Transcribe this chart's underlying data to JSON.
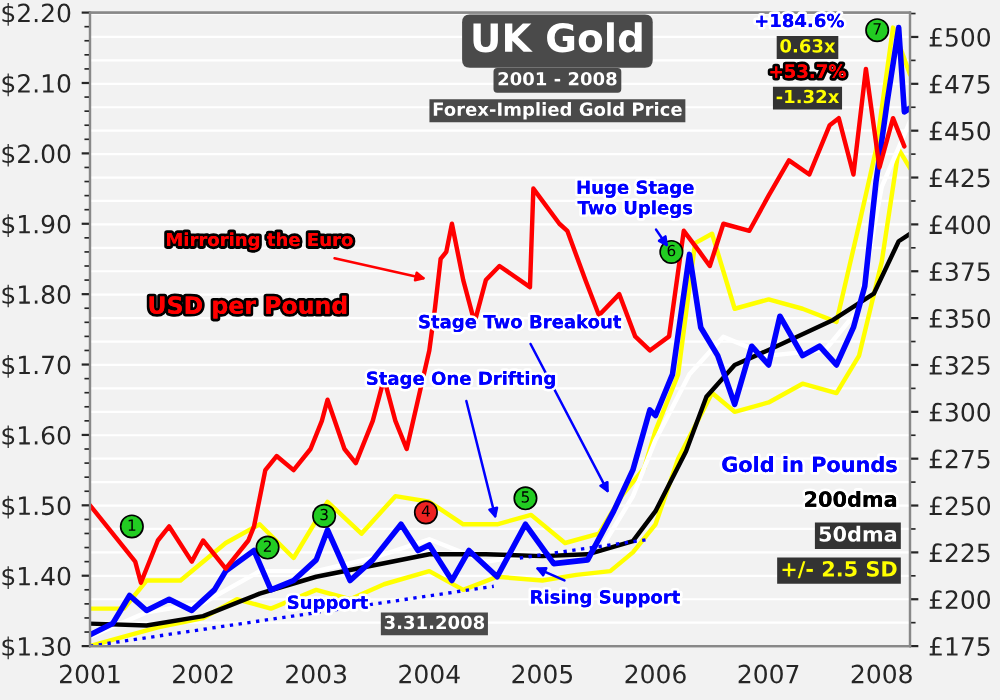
{
  "chart_data": {
    "type": "line",
    "title": "UK Gold",
    "subtitle": "2001 - 2008",
    "ylabel": "USD per Pound",
    "xlim": [
      2001,
      2008.25
    ],
    "xticks": [
      2001,
      2002,
      2003,
      2004,
      2005,
      2006,
      2007,
      2008
    ],
    "ylim": [
      1.3,
      2.2
    ],
    "yticks": [
      {
        "value": 1.3,
        "label": "$1.30"
      },
      {
        "value": 1.4,
        "label": "$1.40"
      },
      {
        "value": 1.5,
        "label": "$1.50"
      },
      {
        "value": 1.6,
        "label": "$1.60"
      },
      {
        "value": 1.7,
        "label": "$1.70"
      },
      {
        "value": 1.8,
        "label": "$1.80"
      },
      {
        "value": 1.9,
        "label": "$1.90"
      },
      {
        "value": 2.0,
        "label": "$2.00"
      },
      {
        "value": 2.1,
        "label": "$2.10"
      },
      {
        "value": 2.2,
        "label": "$2.20"
      }
    ],
    "y2lim": [
      175,
      513
    ],
    "y2ticks": [
      {
        "value": 175,
        "label": "£175"
      },
      {
        "value": 200,
        "label": "£200"
      },
      {
        "value": 225,
        "label": "£225"
      },
      {
        "value": 250,
        "label": "£250"
      },
      {
        "value": 275,
        "label": "£275"
      },
      {
        "value": 300,
        "label": "£300"
      },
      {
        "value": 325,
        "label": "£325"
      },
      {
        "value": 350,
        "label": "£350"
      },
      {
        "value": 375,
        "label": "£375"
      },
      {
        "value": 400,
        "label": "£400"
      },
      {
        "value": 425,
        "label": "£425"
      },
      {
        "value": 450,
        "label": "£450"
      },
      {
        "value": 475,
        "label": "£475"
      },
      {
        "value": 500,
        "label": "£500"
      }
    ],
    "grid": true,
    "legend": "bottom right",
    "marker": "none",
    "series": [
      {
        "name": "+/- 2.5 SD",
        "color": "#ffff00",
        "axis": "y2",
        "x": [
          2001.0,
          2001.3,
          2001.5,
          2001.8,
          2002.2,
          2002.5,
          2002.8,
          2003.1,
          2003.4,
          2003.7,
          2004.0,
          2004.3,
          2004.6,
          2004.9,
          2005.2,
          2005.5,
          2005.7,
          2005.9,
          2006.0,
          2006.2,
          2006.35,
          2006.5,
          2006.7,
          2007.0,
          2007.3,
          2007.6,
          2007.8,
          2007.95,
          2008.1,
          2008.25
        ],
        "values": [
          195,
          195,
          210,
          210,
          230,
          240,
          222,
          252,
          235,
          255,
          252,
          240,
          240,
          245,
          230,
          235,
          255,
          270,
          290,
          320,
          390,
          395,
          355,
          360,
          355,
          348,
          400,
          440,
          505,
          480
        ]
      },
      {
        "color": "#ffff00",
        "axis": "y2",
        "x": [
          2001.0,
          2001.3,
          2001.6,
          2002.0,
          2002.3,
          2002.6,
          2003.0,
          2003.3,
          2003.6,
          2004.0,
          2004.3,
          2004.6,
          2005.0,
          2005.3,
          2005.6,
          2005.8,
          2006.0,
          2006.2,
          2006.5,
          2006.7,
          2007.0,
          2007.3,
          2007.6,
          2007.8,
          2008.0,
          2008.15,
          2008.25
        ],
        "values": [
          175,
          180,
          185,
          190,
          200,
          195,
          205,
          200,
          208,
          215,
          205,
          212,
          210,
          213,
          215,
          225,
          240,
          275,
          310,
          300,
          305,
          315,
          310,
          330,
          380,
          440,
          430
        ]
      },
      {
        "name": "50dma",
        "color": "#ffffff",
        "axis": "y2",
        "x": [
          2001.0,
          2001.5,
          2002.0,
          2002.5,
          2003.0,
          2003.5,
          2004.0,
          2004.5,
          2005.0,
          2005.5,
          2005.8,
          2006.0,
          2006.3,
          2006.6,
          2007.0,
          2007.5,
          2007.8,
          2008.0,
          2008.25
        ],
        "values": [
          180,
          193,
          198,
          215,
          215,
          222,
          232,
          220,
          225,
          225,
          255,
          285,
          320,
          340,
          330,
          333,
          355,
          420,
          455
        ]
      },
      {
        "name": "200dma",
        "color": "#000000",
        "axis": "y2",
        "x": [
          2001.0,
          2001.5,
          2002.0,
          2002.5,
          2003.0,
          2003.5,
          2004.0,
          2004.5,
          2005.0,
          2005.4,
          2005.8,
          2006.0,
          2006.27,
          2006.45,
          2006.7,
          2007.0,
          2007.57,
          2007.93,
          2008.15,
          2008.25
        ],
        "values": [
          187,
          186,
          191,
          203,
          212,
          218,
          224,
          224,
          223,
          224,
          231,
          247,
          279,
          308,
          325,
          333,
          349,
          363,
          391,
          395
        ]
      },
      {
        "name": "Gold in Pounds",
        "color": "#0000ff",
        "axis": "y2",
        "x": [
          2001.0,
          2001.2,
          2001.35,
          2001.5,
          2001.7,
          2001.9,
          2002.1,
          2002.2,
          2002.45,
          2002.6,
          2002.8,
          2003.0,
          2003.1,
          2003.3,
          2003.5,
          2003.75,
          2003.9,
          2004.0,
          2004.2,
          2004.35,
          2004.6,
          2004.85,
          2005.1,
          2005.4,
          2005.63,
          2005.8,
          2005.95,
          2006.0,
          2006.15,
          2006.3,
          2006.4,
          2006.55,
          2006.7,
          2006.85,
          2007.0,
          2007.1,
          2007.3,
          2007.45,
          2007.6,
          2007.75,
          2007.85,
          2007.95,
          2008.05,
          2008.15,
          2008.2,
          2008.25
        ],
        "values": [
          181,
          187,
          202,
          194,
          200,
          194,
          205,
          215,
          226,
          205,
          210,
          221,
          237,
          210,
          221,
          240,
          226,
          229,
          210,
          226,
          212,
          240,
          219,
          221,
          247,
          269,
          301,
          298,
          320,
          384,
          345,
          330,
          304,
          335,
          325,
          351,
          330,
          335,
          325,
          345,
          367,
          423,
          466,
          505,
          460,
          462
        ]
      },
      {
        "color": "#ff0000",
        "axis": "y",
        "x": [
          2001.0,
          2001.4,
          2001.45,
          2001.6,
          2001.7,
          2001.9,
          2002.0,
          2002.2,
          2002.4,
          2002.45,
          2002.55,
          2002.65,
          2002.8,
          2002.95,
          2003.05,
          2003.1,
          2003.25,
          2003.35,
          2003.5,
          2003.6,
          2003.7,
          2003.8,
          2003.9,
          2004.0,
          2004.05,
          2004.1,
          2004.15,
          2004.2,
          2004.3,
          2004.4,
          2004.5,
          2004.62,
          2004.89,
          2004.92,
          2005.15,
          2005.22,
          2005.38,
          2005.5,
          2005.68,
          2005.82,
          2005.95,
          2006.12,
          2006.25,
          2006.39,
          2006.48,
          2006.6,
          2006.83,
          2007.0,
          2007.18,
          2007.36,
          2007.54,
          2007.62,
          2007.75,
          2007.86,
          2007.98,
          2008.1,
          2008.2
        ],
        "values": [
          1.5,
          1.42,
          1.39,
          1.45,
          1.47,
          1.42,
          1.45,
          1.41,
          1.45,
          1.47,
          1.55,
          1.57,
          1.55,
          1.58,
          1.62,
          1.65,
          1.58,
          1.56,
          1.62,
          1.68,
          1.62,
          1.58,
          1.65,
          1.72,
          1.78,
          1.85,
          1.86,
          1.9,
          1.82,
          1.76,
          1.82,
          1.84,
          1.81,
          1.95,
          1.9,
          1.89,
          1.82,
          1.77,
          1.8,
          1.74,
          1.72,
          1.74,
          1.89,
          1.86,
          1.84,
          1.9,
          1.89,
          1.94,
          1.99,
          1.97,
          2.04,
          2.05,
          1.97,
          2.12,
          1.98,
          2.05,
          2.01
        ]
      },
      {
        "color": "#0000ff",
        "axis": "y",
        "line_style": "dotted",
        "x": [
          2001.0,
          2004.57
        ],
        "values": [
          1.3,
          1.385
        ]
      },
      {
        "color": "#0000ff",
        "axis": "y2",
        "line_style": "dotted",
        "x": [
          2004.8,
          2005.95
        ],
        "values": [
          222,
          232
        ]
      }
    ],
    "annotations": [
      {
        "text": "1",
        "x": 2001.37,
        "y": 1.47
      },
      {
        "text": "2",
        "x": 2002.57,
        "y": 1.44
      },
      {
        "text": "3",
        "x": 2003.07,
        "y": 1.485
      },
      {
        "text": "4",
        "x": 2003.97,
        "y": 1.49
      },
      {
        "text": "5",
        "x": 2004.85,
        "y": 1.51
      },
      {
        "text": "6",
        "x": 2006.14,
        "y": 1.86
      },
      {
        "text": "7",
        "x": 2007.96,
        "y": 2.175
      },
      {
        "text": "Mirroring the Euro",
        "x": 2004.02,
        "y": 1.82
      },
      {
        "text": "Huge Stage\nTwo Uplegs",
        "x": 2006.14,
        "y": 1.86
      },
      {
        "text": "Stage Two Breakout",
        "x": 2005.61,
        "y": 1.51
      },
      {
        "text": "Stage One Drifting",
        "x": 2004.6,
        "y": 1.473
      },
      {
        "text": "Rising Support",
        "x": 2004.89,
        "y": 1.415
      },
      {
        "text": "Support",
        "x": 2003.1,
        "y": 1.36
      },
      "3.31.2008",
      "Forex-Implied Gold Price",
      "+184.6%",
      "0.63x",
      "+53.7%",
      "-1.32x"
    ]
  }
}
